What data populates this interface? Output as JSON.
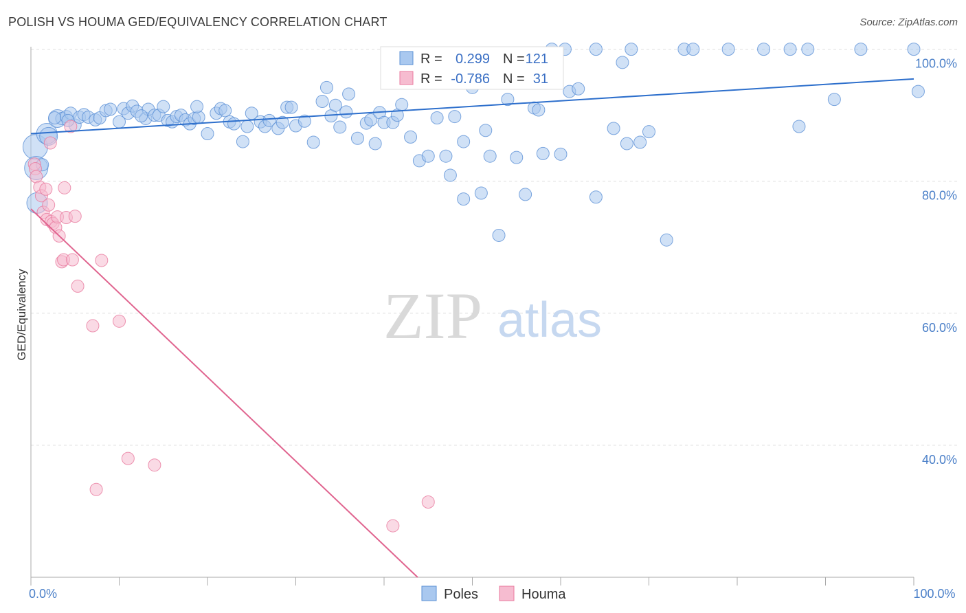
{
  "title": "POLISH VS HOUMA GED/EQUIVALENCY CORRELATION CHART",
  "source": "Source: ZipAtlas.com",
  "watermark": {
    "zip": "ZIP",
    "atlas": "atlas"
  },
  "colors": {
    "poles_fill": "#a9c8ef",
    "poles_stroke": "#5b90d6",
    "poles_line": "#2d6fcc",
    "houma_fill": "#f6bcd0",
    "houma_stroke": "#e9799e",
    "houma_line": "#e0648f",
    "tick_text": "#4a7fc8",
    "grid": "#dddddd"
  },
  "stats_legend": {
    "r_label": "R =",
    "n_label": "N =",
    "rows": [
      {
        "series": "Poles",
        "r": "0.299",
        "n": "121"
      },
      {
        "series": "Houma",
        "r": "-0.786",
        "n": "31"
      }
    ]
  },
  "chart_data": {
    "type": "scatter",
    "title": "POLISH VS HOUMA GED/EQUIVALENCY CORRELATION CHART",
    "xlabel": "",
    "ylabel": "GED/Equivalency",
    "xlim": [
      0,
      100
    ],
    "ylim": [
      20,
      101
    ],
    "x_tick_labels": [
      {
        "value": 0,
        "label": "0.0%"
      },
      {
        "value": 100,
        "label": "100.0%"
      }
    ],
    "y_tick_labels": [
      {
        "value": 100,
        "label": "100.0%"
      },
      {
        "value": 80,
        "label": "80.0%"
      },
      {
        "value": 60,
        "label": "60.0%"
      },
      {
        "value": 40,
        "label": "40.0%"
      }
    ],
    "grid": true,
    "legend_position": "bottom-center",
    "series": [
      {
        "name": "Poles",
        "trend": {
          "x": [
            0,
            100
          ],
          "y": [
            87.2,
            95.5
          ]
        },
        "points": [
          [
            0.5,
            85.2
          ],
          [
            0.6,
            82
          ],
          [
            0.7,
            76.7
          ],
          [
            1.8,
            87.2
          ],
          [
            2,
            86.8
          ],
          [
            3,
            89.5
          ],
          [
            3.5,
            89.5
          ],
          [
            4,
            89.8
          ],
          [
            4.5,
            90.3
          ],
          [
            5,
            88.5
          ],
          [
            5.5,
            89.7
          ],
          [
            6,
            90.1
          ],
          [
            6.5,
            89.7
          ],
          [
            7.3,
            89.3
          ],
          [
            7.8,
            89.6
          ],
          [
            8.5,
            90.7
          ],
          [
            9,
            90.9
          ],
          [
            10,
            89
          ],
          [
            10.5,
            91
          ],
          [
            11,
            90.3
          ],
          [
            11.5,
            91.4
          ],
          [
            12,
            90.6
          ],
          [
            13,
            89.5
          ],
          [
            13.3,
            90.9
          ],
          [
            14,
            90
          ],
          [
            14.5,
            90
          ],
          [
            15,
            91.3
          ],
          [
            15.5,
            89.2
          ],
          [
            16,
            89
          ],
          [
            16.5,
            89.8
          ],
          [
            17,
            90
          ],
          [
            17.5,
            89.3
          ],
          [
            18,
            88.7
          ],
          [
            18.5,
            89.5
          ],
          [
            19,
            89.7
          ],
          [
            20,
            87.2
          ],
          [
            21,
            90.3
          ],
          [
            21.5,
            91
          ],
          [
            22,
            90.7
          ],
          [
            22.5,
            89
          ],
          [
            23,
            88.7
          ],
          [
            24,
            86
          ],
          [
            24.5,
            88.3
          ],
          [
            25,
            90.3
          ],
          [
            26,
            89
          ],
          [
            26.5,
            88.3
          ],
          [
            27,
            89.2
          ],
          [
            28,
            88
          ],
          [
            28.5,
            88.9
          ],
          [
            29,
            91.2
          ],
          [
            29.5,
            91.2
          ],
          [
            30,
            88.4
          ],
          [
            31,
            89.1
          ],
          [
            32,
            85.9
          ],
          [
            33,
            92.1
          ],
          [
            33.5,
            94.2
          ],
          [
            34,
            89.9
          ],
          [
            34.5,
            91.5
          ],
          [
            35,
            88.2
          ],
          [
            35.7,
            90.5
          ],
          [
            36,
            93.2
          ],
          [
            37,
            86.5
          ],
          [
            38,
            88.8
          ],
          [
            38.5,
            89.3
          ],
          [
            39,
            85.7
          ],
          [
            39.5,
            90.4
          ],
          [
            40,
            88.9
          ],
          [
            41,
            88.9
          ],
          [
            41.5,
            90
          ],
          [
            42,
            91.6
          ],
          [
            43,
            86.7
          ],
          [
            44,
            83.1
          ],
          [
            45,
            83.8
          ],
          [
            45.5,
            98.8
          ],
          [
            46,
            89.6
          ],
          [
            47,
            83.8
          ],
          [
            47.5,
            80.9
          ],
          [
            48,
            89.8
          ],
          [
            49,
            86
          ],
          [
            49,
            77.3
          ],
          [
            50,
            94.2
          ],
          [
            51,
            78.2
          ],
          [
            51.5,
            87.7
          ],
          [
            52,
            83.8
          ],
          [
            53,
            71.8
          ],
          [
            54,
            92.4
          ],
          [
            55,
            83.6
          ],
          [
            56,
            78
          ],
          [
            57,
            91.1
          ],
          [
            57.5,
            90.8
          ],
          [
            58,
            84.2
          ],
          [
            59,
            100
          ],
          [
            60,
            84.1
          ],
          [
            60.5,
            100
          ],
          [
            61,
            93.6
          ],
          [
            62,
            94
          ],
          [
            64,
            77.6
          ],
          [
            64,
            100
          ],
          [
            66,
            88
          ],
          [
            67,
            98
          ],
          [
            67.5,
            85.7
          ],
          [
            68,
            100
          ],
          [
            69,
            85.9
          ],
          [
            70,
            87.5
          ],
          [
            72,
            71.1
          ],
          [
            74,
            100
          ],
          [
            75,
            100
          ],
          [
            79,
            100
          ],
          [
            83,
            100
          ],
          [
            86,
            100
          ],
          [
            87,
            88.3
          ],
          [
            88,
            100
          ],
          [
            91,
            92.4
          ],
          [
            94,
            100
          ],
          [
            100,
            100
          ],
          [
            100.5,
            93.6
          ],
          [
            1.3,
            82.5
          ],
          [
            2.7,
            89.6
          ],
          [
            4.2,
            89.2
          ],
          [
            12.5,
            89.9
          ],
          [
            18.8,
            91.3
          ]
        ]
      },
      {
        "name": "Houma",
        "trend": {
          "x": [
            0,
            43.8
          ],
          "y": [
            75.8,
            20
          ]
        },
        "points": [
          [
            0.4,
            82.6
          ],
          [
            0.5,
            81.9
          ],
          [
            0.6,
            80.7
          ],
          [
            1,
            79.1
          ],
          [
            1.2,
            77.8
          ],
          [
            1.4,
            75.3
          ],
          [
            1.7,
            78.8
          ],
          [
            1.8,
            74.2
          ],
          [
            2,
            76.4
          ],
          [
            2.3,
            73.9
          ],
          [
            2.5,
            73.6
          ],
          [
            2.8,
            73
          ],
          [
            3,
            74.6
          ],
          [
            3.2,
            71.7
          ],
          [
            3.5,
            67.8
          ],
          [
            3.7,
            68.1
          ],
          [
            3.8,
            79
          ],
          [
            4,
            74.5
          ],
          [
            4.5,
            88.3
          ],
          [
            4.7,
            68.1
          ],
          [
            5,
            74.7
          ],
          [
            5.3,
            64.1
          ],
          [
            7,
            58.1
          ],
          [
            7.4,
            33.3
          ],
          [
            8,
            68
          ],
          [
            10,
            58.8
          ],
          [
            11,
            38
          ],
          [
            14,
            37
          ],
          [
            41,
            27.8
          ],
          [
            45,
            31.4
          ],
          [
            2.2,
            85.8
          ]
        ]
      }
    ]
  }
}
